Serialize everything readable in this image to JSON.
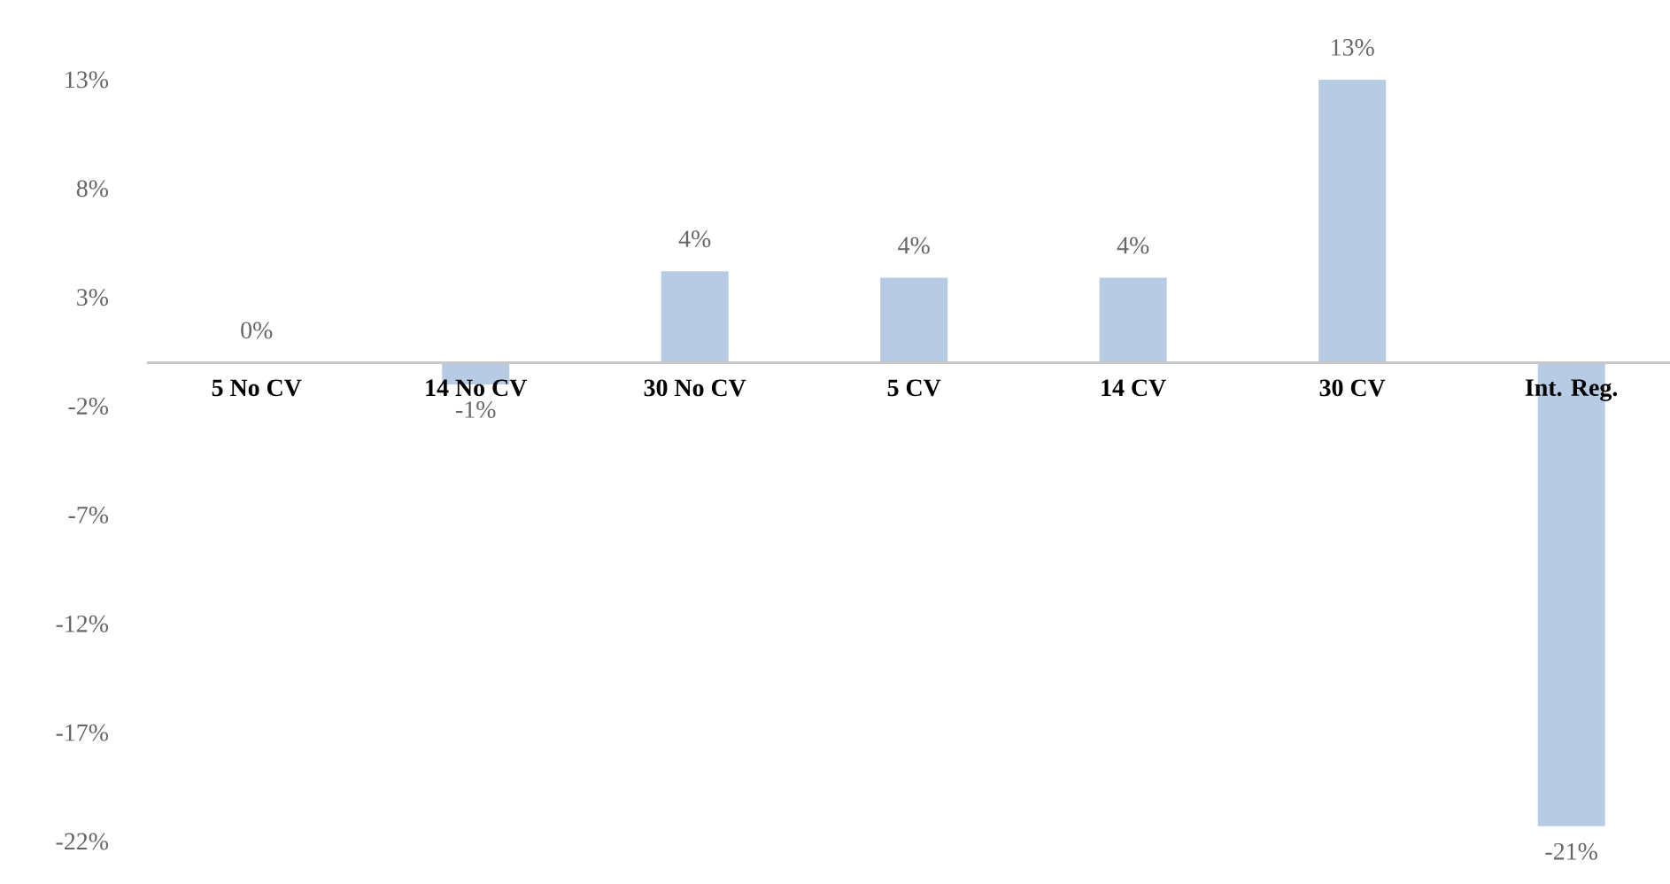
{
  "chart_data": {
    "type": "bar",
    "categories": [
      "5 No CV",
      "14 No CV",
      "30 No CV",
      "5 CV",
      "14 CV",
      "30 CV",
      "Int. Reg."
    ],
    "values": [
      0,
      -1,
      4.2,
      3.9,
      3.9,
      13,
      -21.3
    ],
    "value_labels": [
      "0%",
      "-1%",
      "4%",
      "4%",
      "4%",
      "13%",
      "-21%"
    ],
    "color": "#b7cce4",
    "ylim": [
      -22,
      13
    ],
    "yticks": [
      {
        "value": 13,
        "label": "13%"
      },
      {
        "value": 8,
        "label": "8%"
      },
      {
        "value": 3,
        "label": "3%"
      },
      {
        "value": -2,
        "label": "-2%"
      },
      {
        "value": -7,
        "label": "-7%"
      },
      {
        "value": -12,
        "label": "-12%"
      },
      {
        "value": -17,
        "label": "-17%"
      },
      {
        "value": -22,
        "label": "-22%"
      }
    ],
    "grid": false
  }
}
